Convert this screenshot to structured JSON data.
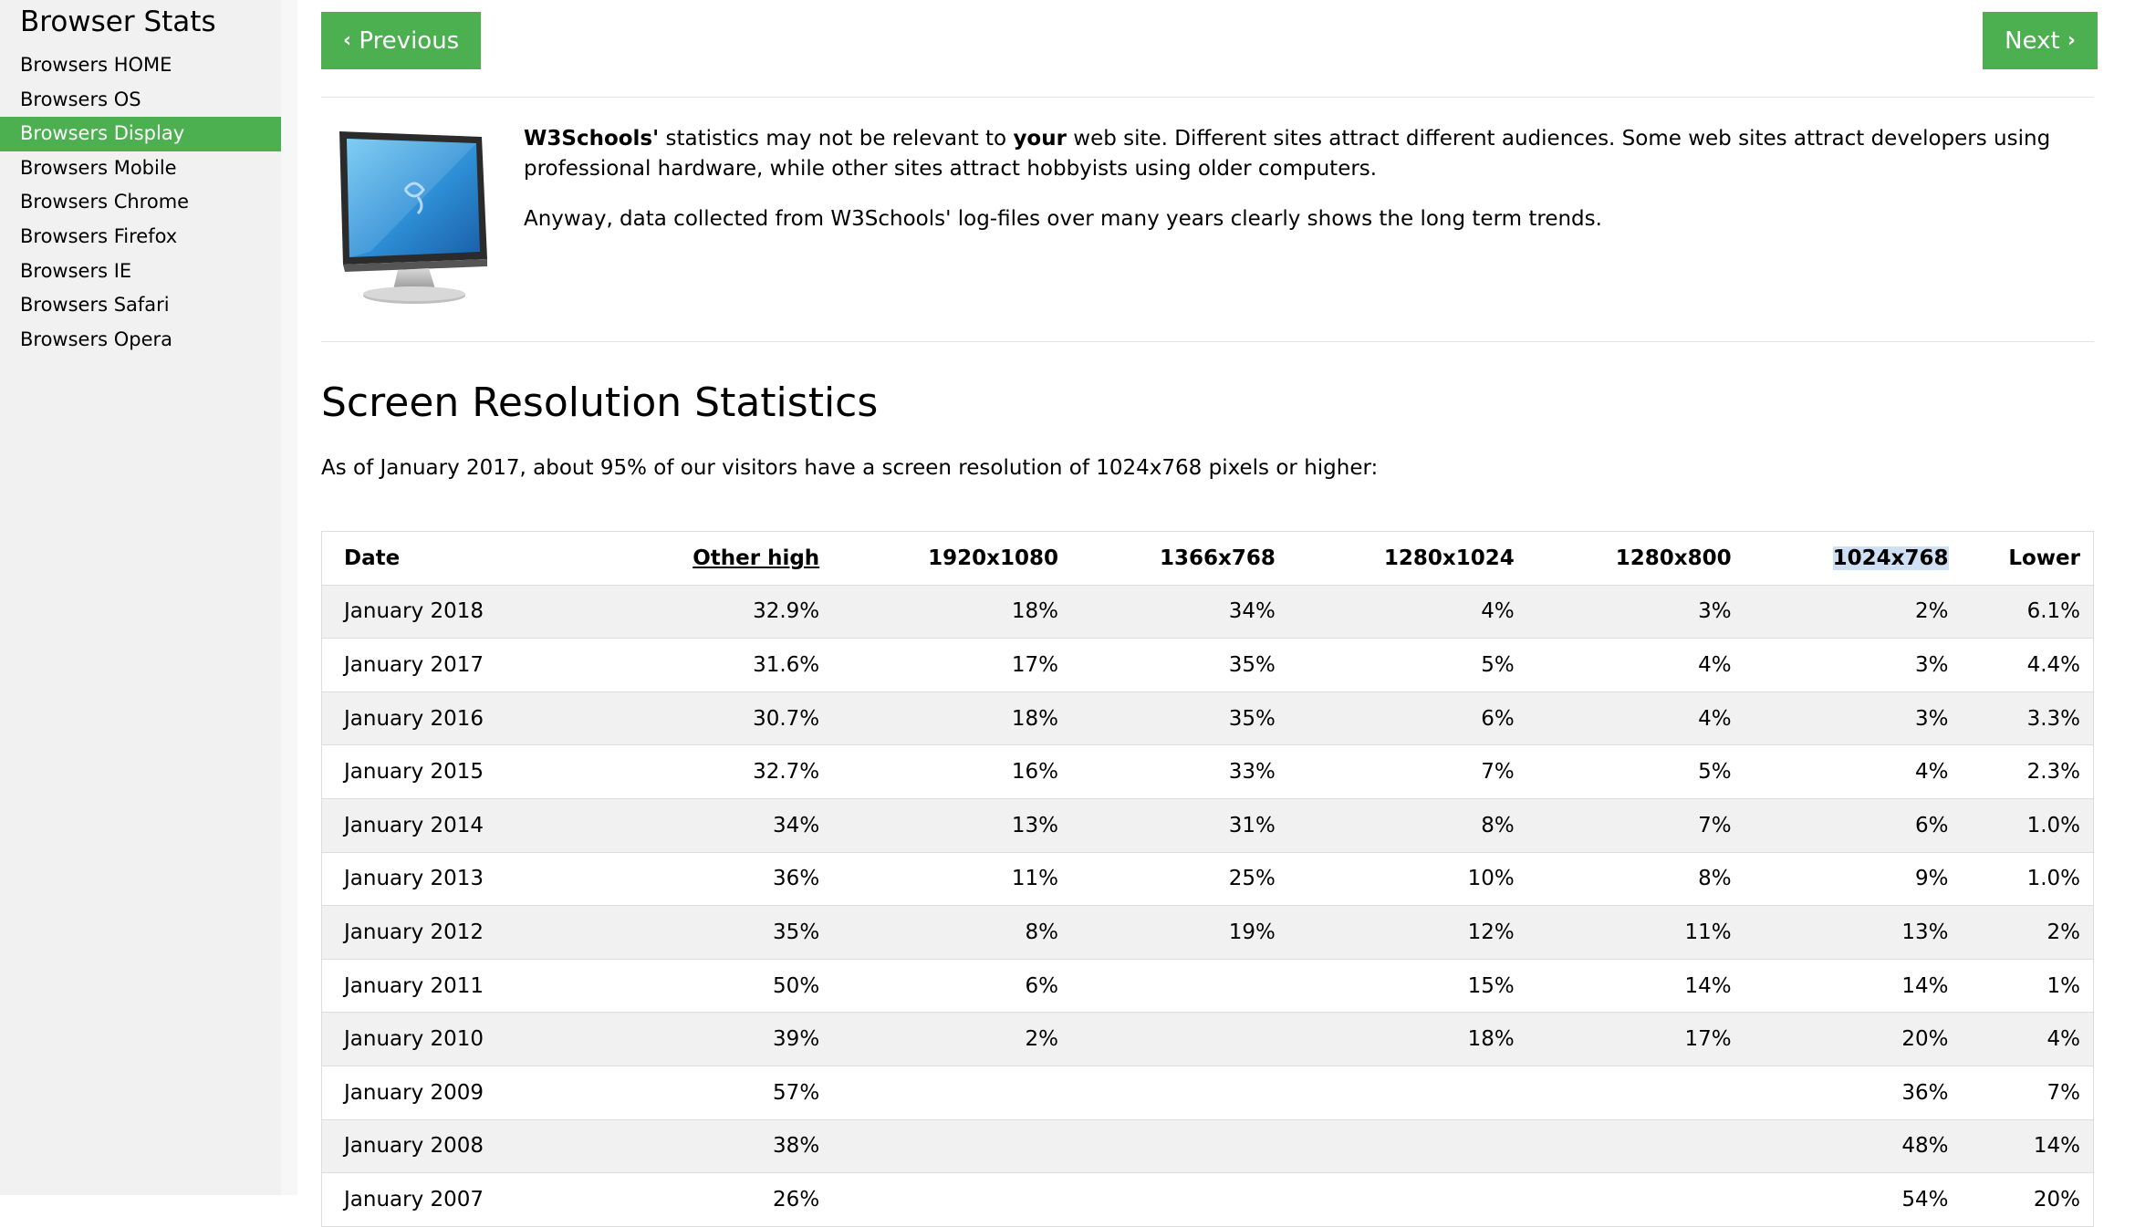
{
  "sidebar": {
    "title": "Browser Stats",
    "items": [
      {
        "label": "Browsers HOME",
        "active": false
      },
      {
        "label": "Browsers OS",
        "active": false
      },
      {
        "label": "Browsers Display",
        "active": true
      },
      {
        "label": "Browsers Mobile",
        "active": false
      },
      {
        "label": "Browsers Chrome",
        "active": false
      },
      {
        "label": "Browsers Firefox",
        "active": false
      },
      {
        "label": "Browsers IE",
        "active": false
      },
      {
        "label": "Browsers Safari",
        "active": false
      },
      {
        "label": "Browsers Opera",
        "active": false
      }
    ]
  },
  "nav": {
    "previous_icon": "‹",
    "previous_label": "Previous",
    "next_label": "Next",
    "next_icon": "›"
  },
  "intro": {
    "brand": "W3Schools'",
    "text_1": " statistics may not be relevant to ",
    "emphasis": "your",
    "text_2": " web site. Different sites attract different audiences. Some web sites attract developers using professional hardware, while other sites attract hobbyists using older computers.",
    "paragraph_2": "Anyway, data collected from W3Schools' log-files over many years clearly shows the long term trends."
  },
  "section": {
    "heading": "Screen Resolution Statistics",
    "lead": "As of January 2017, about 95% of our visitors have a screen resolution of 1024x768 pixels or higher:"
  },
  "table": {
    "headers": [
      "Date",
      "Other high",
      "1920x1080",
      "1366x768",
      "1280x1024",
      "1280x800",
      "1024x768",
      "Lower"
    ],
    "rows": [
      [
        "January 2018",
        "32.9%",
        "18%",
        "34%",
        "4%",
        "3%",
        "2%",
        "6.1%"
      ],
      [
        "January 2017",
        "31.6%",
        "17%",
        "35%",
        "5%",
        "4%",
        "3%",
        "4.4%"
      ],
      [
        "January 2016",
        "30.7%",
        "18%",
        "35%",
        "6%",
        "4%",
        "3%",
        "3.3%"
      ],
      [
        "January 2015",
        "32.7%",
        "16%",
        "33%",
        "7%",
        "5%",
        "4%",
        "2.3%"
      ],
      [
        "January 2014",
        "34%",
        "13%",
        "31%",
        "8%",
        "7%",
        "6%",
        "1.0%"
      ],
      [
        "January 2013",
        "36%",
        "11%",
        "25%",
        "10%",
        "8%",
        "9%",
        "1.0%"
      ],
      [
        "January 2012",
        "35%",
        "8%",
        "19%",
        "12%",
        "11%",
        "13%",
        "2%"
      ],
      [
        "January 2011",
        "50%",
        "6%",
        "",
        "15%",
        "14%",
        "14%",
        "1%"
      ],
      [
        "January 2010",
        "39%",
        "2%",
        "",
        "18%",
        "17%",
        "20%",
        "4%"
      ],
      [
        "January 2009",
        "57%",
        "",
        "",
        "",
        "",
        "36%",
        "7%"
      ],
      [
        "January 2008",
        "38%",
        "",
        "",
        "",
        "",
        "48%",
        "14%"
      ],
      [
        "January 2007",
        "26%",
        "",
        "",
        "",
        "",
        "54%",
        "20%"
      ]
    ]
  },
  "colors": {
    "accent": "#4caf50",
    "sidebar_bg": "#f1f1f1",
    "row_alt": "#f1f1f1",
    "selection": "#cfe0f5"
  }
}
